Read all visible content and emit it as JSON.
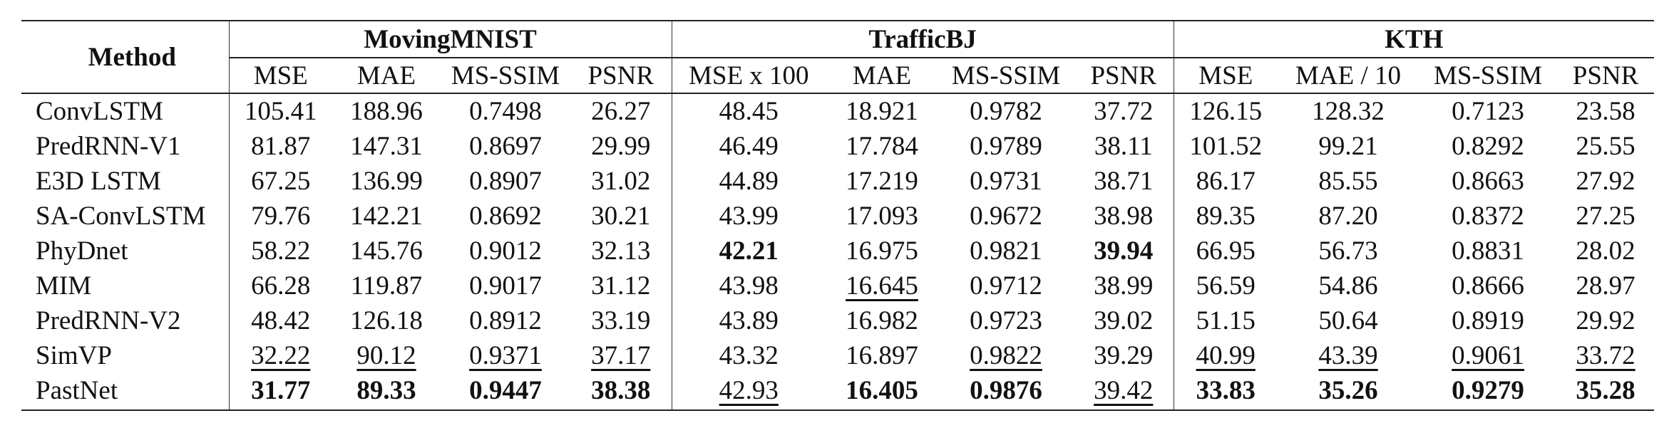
{
  "table": {
    "method_header": "Method",
    "datasets": [
      {
        "name": "MovingMNIST",
        "metrics": [
          "MSE",
          "MAE",
          "MS-SSIM",
          "PSNR"
        ]
      },
      {
        "name": "TrafficBJ",
        "metrics": [
          "MSE x 100",
          "MAE",
          "MS-SSIM",
          "PSNR"
        ]
      },
      {
        "name": "KTH",
        "metrics": [
          "MSE",
          "MAE / 10",
          "MS-SSIM",
          "PSNR"
        ]
      }
    ],
    "rows": [
      {
        "method": "ConvLSTM",
        "values": [
          "105.41",
          "188.96",
          "0.7498",
          "26.27",
          "48.45",
          "18.921",
          "0.9782",
          "37.72",
          "126.15",
          "128.32",
          "0.7123",
          "23.58"
        ],
        "bold": [],
        "underline": []
      },
      {
        "method": "PredRNN-V1",
        "values": [
          "81.87",
          "147.31",
          "0.8697",
          "29.99",
          "46.49",
          "17.784",
          "0.9789",
          "38.11",
          "101.52",
          "99.21",
          "0.8292",
          "25.55"
        ],
        "bold": [],
        "underline": []
      },
      {
        "method": "E3D LSTM",
        "values": [
          "67.25",
          "136.99",
          "0.8907",
          "31.02",
          "44.89",
          "17.219",
          "0.9731",
          "38.71",
          "86.17",
          "85.55",
          "0.8663",
          "27.92"
        ],
        "bold": [],
        "underline": []
      },
      {
        "method": "SA-ConvLSTM",
        "values": [
          "79.76",
          "142.21",
          "0.8692",
          "30.21",
          "43.99",
          "17.093",
          "0.9672",
          "38.98",
          "89.35",
          "87.20",
          "0.8372",
          "27.25"
        ],
        "bold": [],
        "underline": []
      },
      {
        "method": "PhyDnet",
        "values": [
          "58.22",
          "145.76",
          "0.9012",
          "32.13",
          "42.21",
          "16.975",
          "0.9821",
          "39.94",
          "66.95",
          "56.73",
          "0.8831",
          "28.02"
        ],
        "bold": [
          4,
          7
        ],
        "underline": []
      },
      {
        "method": "MIM",
        "values": [
          "66.28",
          "119.87",
          "0.9017",
          "31.12",
          "43.98",
          "16.645",
          "0.9712",
          "38.99",
          "56.59",
          "54.86",
          "0.8666",
          "28.97"
        ],
        "bold": [],
        "underline": [
          5
        ]
      },
      {
        "method": "PredRNN-V2",
        "values": [
          "48.42",
          "126.18",
          "0.8912",
          "33.19",
          "43.89",
          "16.982",
          "0.9723",
          "39.02",
          "51.15",
          "50.64",
          "0.8919",
          "29.92"
        ],
        "bold": [],
        "underline": []
      },
      {
        "method": "SimVP",
        "values": [
          "32.22",
          "90.12",
          "0.9371",
          "37.17",
          "43.32",
          "16.897",
          "0.9822",
          "39.29",
          "40.99",
          "43.39",
          "0.9061",
          "33.72"
        ],
        "bold": [],
        "underline": [
          0,
          1,
          2,
          3,
          6,
          8,
          9,
          10,
          11
        ]
      },
      {
        "method": "PastNet",
        "values": [
          "31.77",
          "89.33",
          "0.9447",
          "38.38",
          "42.93",
          "16.405",
          "0.9876",
          "39.42",
          "33.83",
          "35.26",
          "0.9279",
          "35.28"
        ],
        "bold": [
          0,
          1,
          2,
          3,
          5,
          6,
          8,
          9,
          10,
          11
        ],
        "underline": [
          4,
          7
        ]
      }
    ]
  }
}
